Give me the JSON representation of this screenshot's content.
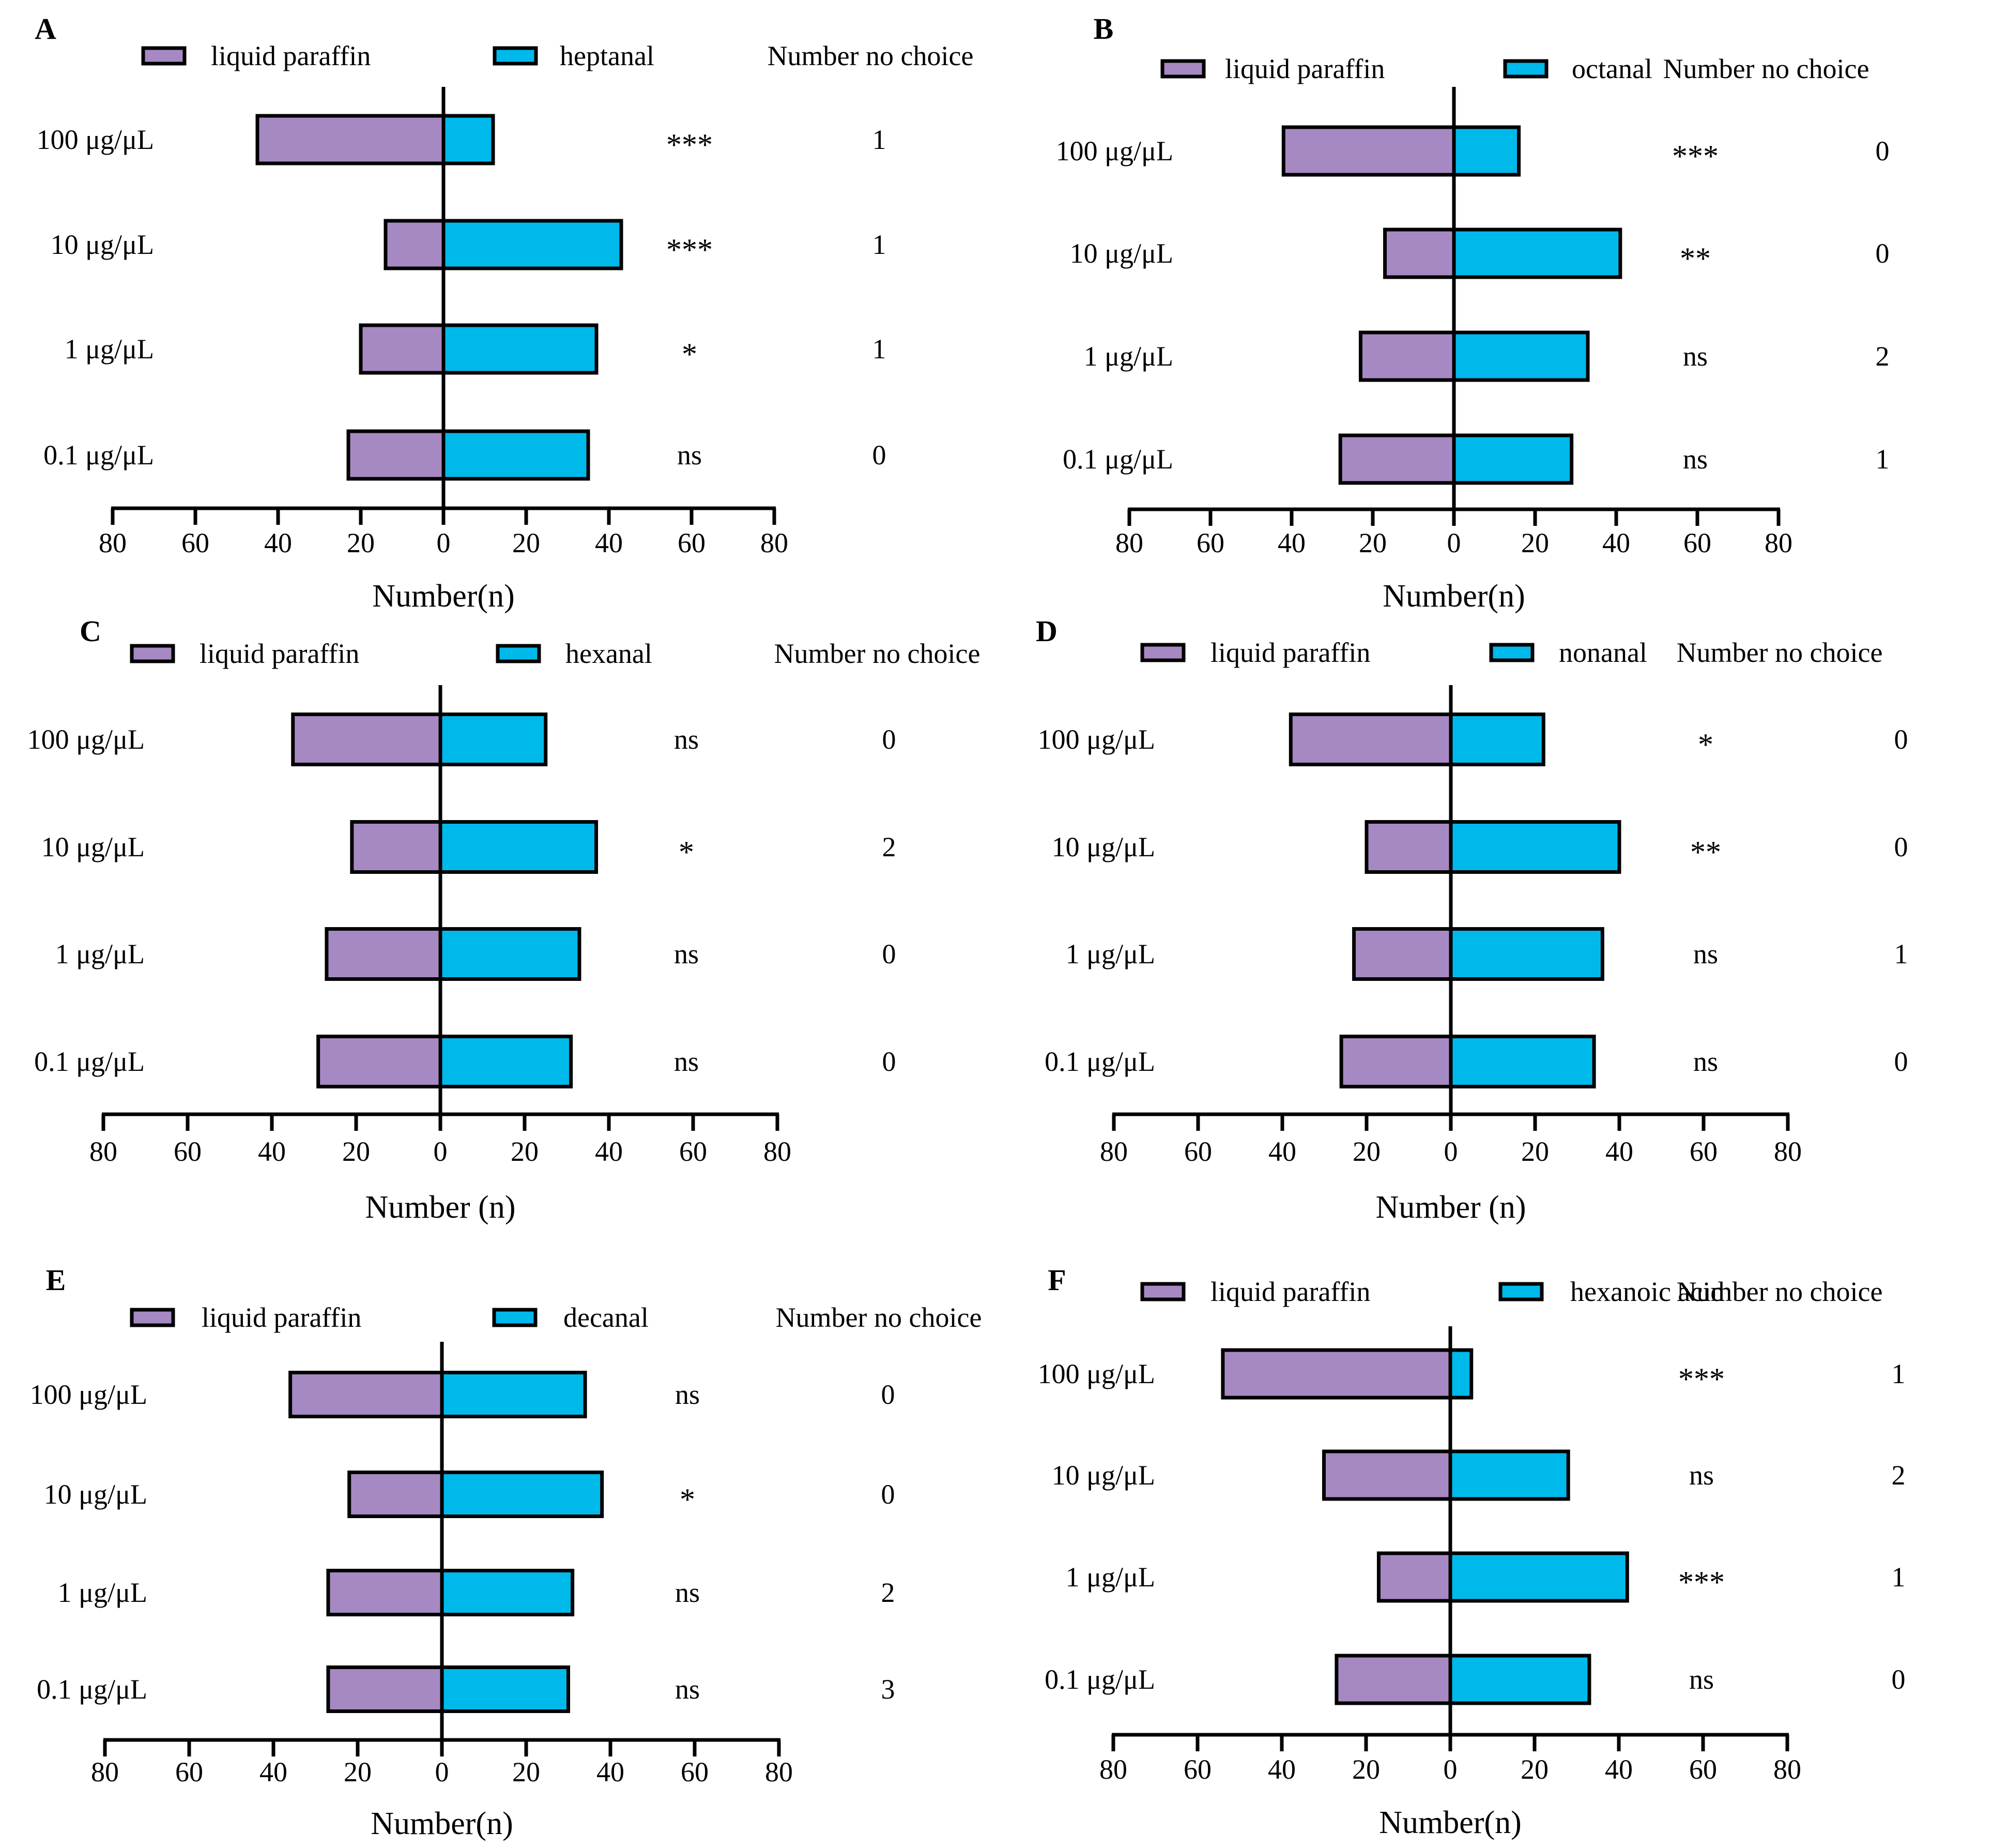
{
  "colors": {
    "control": "#a689c2",
    "treatment": "#00b9eb",
    "stroke": "#000000"
  },
  "chart_data": [
    {
      "type": "bar",
      "panel": "A",
      "legend": {
        "control": "liquid paraffin",
        "treatment": "heptanal",
        "no_choice_header": "Number no choice"
      },
      "categories": [
        "100 μg/μL",
        "10 μg/μL",
        "1 μg/μL",
        "0.1 μg/μL"
      ],
      "series": [
        {
          "name": "liquid paraffin",
          "values": [
            45,
            14,
            20,
            23
          ]
        },
        {
          "name": "heptanal",
          "values": [
            12,
            43,
            37,
            35
          ]
        }
      ],
      "significance": [
        "***",
        "***",
        "*",
        "ns"
      ],
      "no_choice": [
        "1",
        "1",
        "1",
        "0"
      ],
      "xlabel": "Number(n)",
      "xticks": [
        "80",
        "60",
        "40",
        "20",
        "0",
        "20",
        "40",
        "60",
        "80"
      ],
      "xlim": [
        -80,
        80
      ]
    },
    {
      "type": "bar",
      "panel": "B",
      "legend": {
        "control": "liquid paraffin",
        "treatment": "octanal",
        "no_choice_header": "Number no choice"
      },
      "categories": [
        "100 μg/μL",
        "10 μg/μL",
        "1 μg/μL",
        "0.1 μg/μL"
      ],
      "series": [
        {
          "name": "liquid paraffin",
          "values": [
            42,
            17,
            23,
            28
          ]
        },
        {
          "name": "octanal",
          "values": [
            16,
            41,
            33,
            29
          ]
        }
      ],
      "significance": [
        "***",
        "**",
        "ns",
        "ns"
      ],
      "no_choice": [
        "0",
        "0",
        "2",
        "1"
      ],
      "xlabel": "Number(n)",
      "xticks": [
        "80",
        "60",
        "40",
        "20",
        "0",
        "20",
        "40",
        "60",
        "80"
      ],
      "xlim": [
        -80,
        80
      ]
    },
    {
      "type": "bar",
      "panel": "C",
      "legend": {
        "control": "liquid paraffin",
        "treatment": "hexanal",
        "no_choice_header": "Number no choice"
      },
      "categories": [
        "100 μg/μL",
        "10 μg/μL",
        "1 μg/μL",
        "0.1 μg/μL"
      ],
      "series": [
        {
          "name": "liquid paraffin",
          "values": [
            35,
            21,
            27,
            29
          ]
        },
        {
          "name": "hexanal",
          "values": [
            25,
            37,
            33,
            31
          ]
        }
      ],
      "significance": [
        "ns",
        "*",
        "ns",
        "ns"
      ],
      "no_choice": [
        "0",
        "2",
        "0",
        "0"
      ],
      "xlabel": "Number (n)",
      "xticks": [
        "80",
        "60",
        "40",
        "20",
        "0",
        "20",
        "40",
        "60",
        "80"
      ],
      "xlim": [
        -80,
        80
      ]
    },
    {
      "type": "bar",
      "panel": "D",
      "legend": {
        "control": "liquid paraffin",
        "treatment": "nonanal",
        "no_choice_header": "Number no choice"
      },
      "categories": [
        "100 μg/μL",
        "10 μg/μL",
        "1 μg/μL",
        "0.1 μg/μL"
      ],
      "series": [
        {
          "name": "liquid paraffin",
          "values": [
            38,
            20,
            23,
            26
          ]
        },
        {
          "name": "nonanal",
          "values": [
            22,
            40,
            36,
            34
          ]
        }
      ],
      "significance": [
        "*",
        "**",
        "ns",
        "ns"
      ],
      "no_choice": [
        "0",
        "0",
        "1",
        "0"
      ],
      "xlabel": "Number (n)",
      "xticks": [
        "80",
        "60",
        "40",
        "20",
        "0",
        "20",
        "40",
        "60",
        "80"
      ],
      "xlim": [
        -80,
        80
      ]
    },
    {
      "type": "bar",
      "panel": "E",
      "legend": {
        "control": "liquid paraffin",
        "treatment": "decanal",
        "no_choice_header": "Number no choice"
      },
      "categories": [
        "100 μg/μL",
        "10 μg/μL",
        "1 μg/μL",
        "0.1 μg/μL"
      ],
      "series": [
        {
          "name": "liquid paraffin",
          "values": [
            36,
            22,
            27,
            27
          ]
        },
        {
          "name": "decanal",
          "values": [
            34,
            38,
            31,
            30
          ]
        }
      ],
      "significance": [
        "ns",
        "*",
        "ns",
        "ns"
      ],
      "no_choice": [
        "0",
        "0",
        "2",
        "3"
      ],
      "xlabel": "Number(n)",
      "xticks": [
        "80",
        "60",
        "40",
        "20",
        "0",
        "20",
        "40",
        "60",
        "80"
      ],
      "xlim": [
        -80,
        80
      ]
    },
    {
      "type": "bar",
      "panel": "F",
      "legend": {
        "control": "liquid paraffin",
        "treatment": "hexanoic acid",
        "no_choice_header": "Number no choice"
      },
      "categories": [
        "100 μg/μL",
        "10 μg/μL",
        "1 μg/μL",
        "0.1 μg/μL"
      ],
      "series": [
        {
          "name": "liquid paraffin",
          "values": [
            54,
            30,
            17,
            27
          ]
        },
        {
          "name": "hexanoic acid",
          "values": [
            5,
            28,
            42,
            33
          ]
        }
      ],
      "significance": [
        "***",
        "ns",
        "***",
        "ns"
      ],
      "no_choice": [
        "1",
        "2",
        "1",
        "0"
      ],
      "xlabel": "Number(n)",
      "xticks": [
        "80",
        "60",
        "40",
        "20",
        "0",
        "20",
        "40",
        "60",
        "80"
      ],
      "xlim": [
        -80,
        80
      ]
    }
  ]
}
